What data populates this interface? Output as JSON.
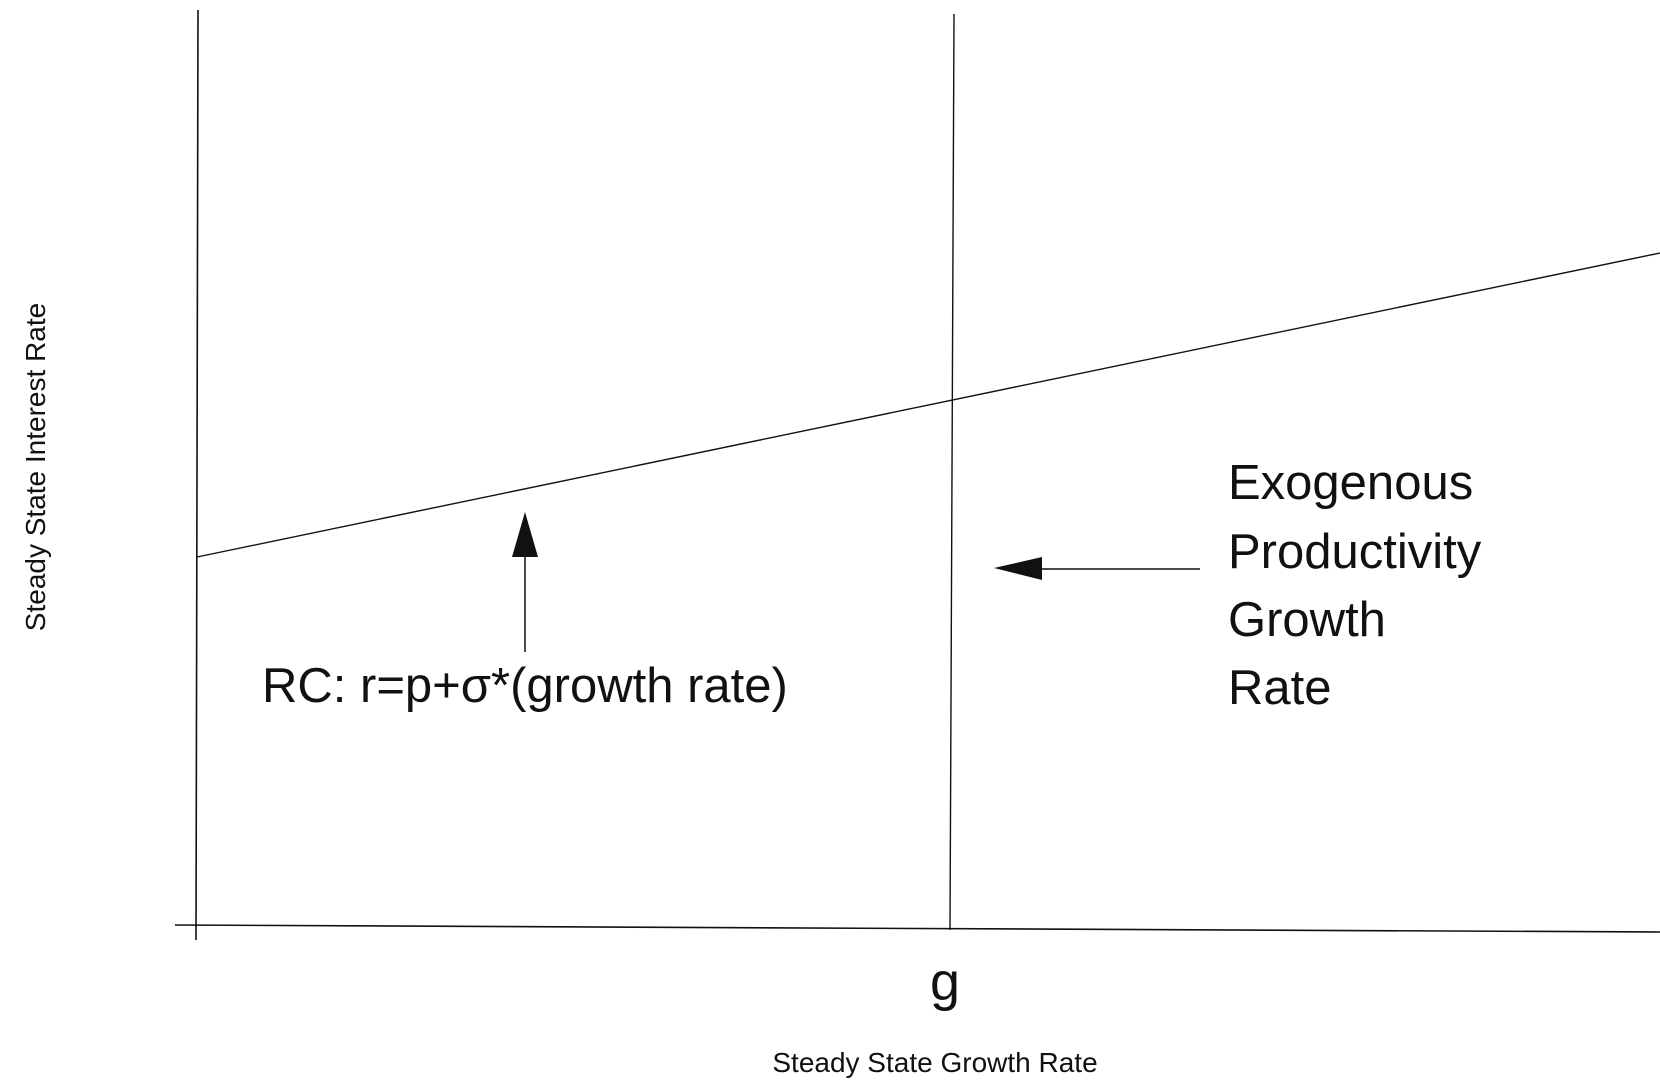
{
  "axes": {
    "x_title": "Steady State Growth Rate",
    "y_title": "Steady State Interest Rate",
    "x_marker": "g"
  },
  "curves": {
    "rc_label": "RC: r=p+σ*(growth rate)"
  },
  "annotations": {
    "vertical_line_label": [
      "Exogenous",
      "Productivity",
      "Growth",
      "Rate"
    ]
  },
  "colors": {
    "ink": "#111111",
    "background": "#ffffff"
  }
}
